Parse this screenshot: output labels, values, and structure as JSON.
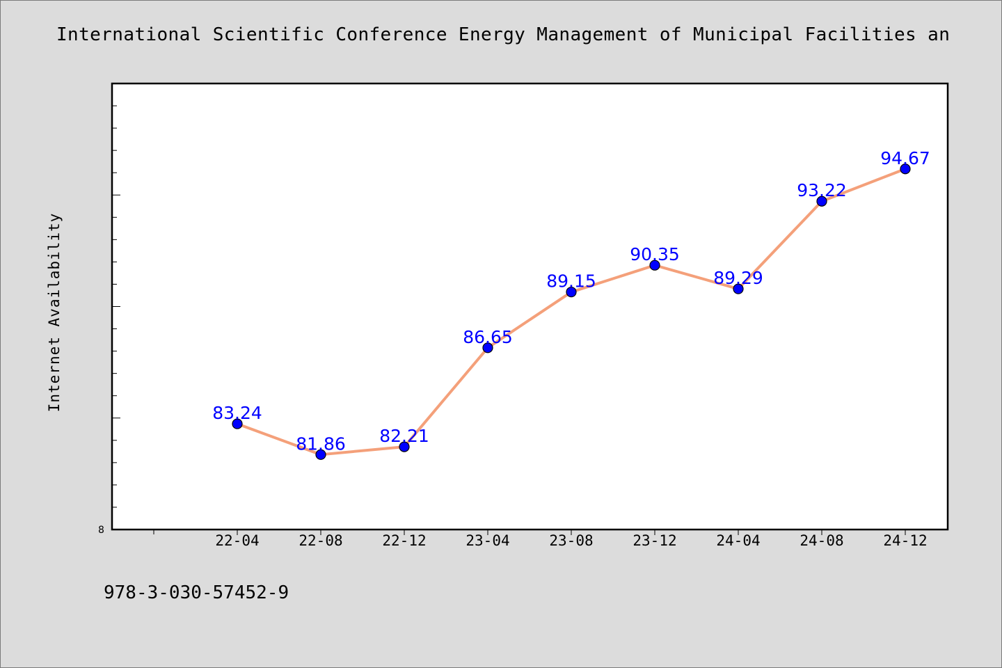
{
  "chart_data": {
    "type": "line",
    "title": "International Scientific Conference Energy Management of Municipal Facilities an",
    "ylabel": "Internet Availability",
    "xlabel": "",
    "categories": [
      "22-04",
      "22-08",
      "22-12",
      "23-04",
      "23-08",
      "23-12",
      "24-04",
      "24-08",
      "24-12"
    ],
    "series": [
      {
        "values": [
          83.24,
          81.86,
          82.21,
          86.65,
          89.15,
          90.35,
          89.29,
          93.22,
          94.67
        ]
      }
    ],
    "data_labels": [
      "83.24",
      "81.86",
      "82.21",
      "86.65",
      "89.15",
      "90.35",
      "89.29",
      "93.22",
      "94.67"
    ],
    "y_tick_label": "8",
    "ylim": [
      78.5,
      98.5
    ],
    "line_color": "#f4a07a",
    "marker_color": "#0000ff",
    "label_color": "#0000ff",
    "grid": false,
    "legend": "none"
  },
  "footer": {
    "isbn": "978-3-030-57452-9"
  }
}
